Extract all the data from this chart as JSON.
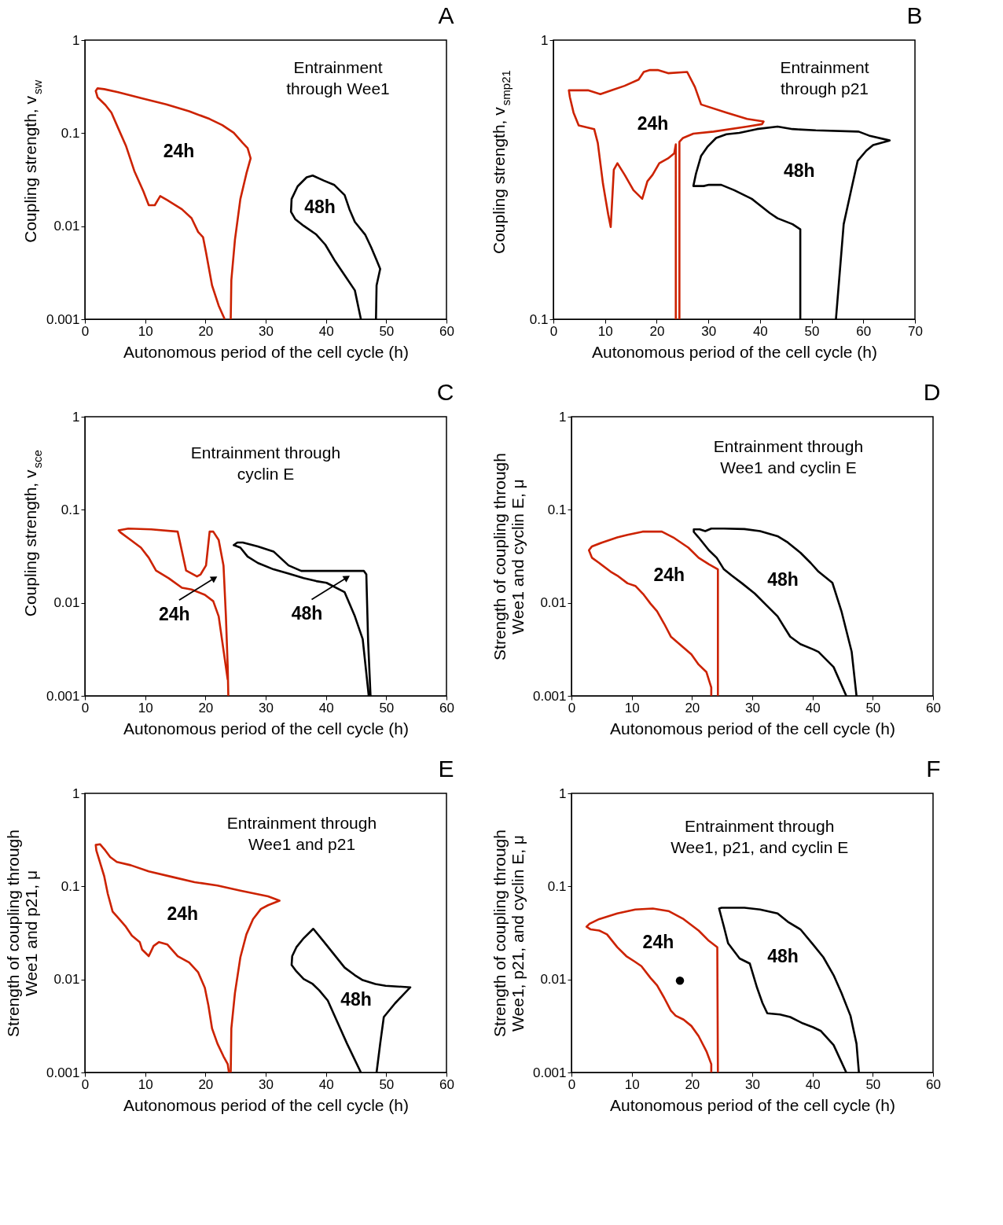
{
  "chart_data": [
    {
      "type": "line",
      "title": "A",
      "xlabel": "Autonomous period of the cell cycle (h)",
      "ylabel": "Coupling strength, v$_{sw}$",
      "log": "y",
      "xlim": [
        0,
        60
      ],
      "xticks": [
        0,
        10,
        20,
        30,
        40,
        50,
        60
      ],
      "ylim": [
        0.001,
        1
      ],
      "yticks": [
        0.001,
        0.01,
        0.1,
        1
      ],
      "annotations": [
        "Entrainment through Wee1",
        "24h",
        "48h"
      ],
      "series": [
        {
          "color": "#cc2200",
          "x": [
            23.2,
            22.2,
            21.1,
            20.1,
            19.6,
            18.8,
            17.7,
            16.1,
            13.7,
            12.5,
            11.6,
            10.6,
            9.7,
            8.2,
            6.8,
            5.5,
            4.4,
            3.4,
            2.1,
            1.8,
            2.1,
            3.2,
            5.5,
            9.7,
            13.5,
            17.3,
            20.7,
            22.8,
            24.7,
            26.2,
            27.0,
            27.5,
            26.8,
            25.8,
            24.9,
            24.3,
            24.2
          ],
          "values": [
            0.001,
            0.0014,
            0.00231,
            0.00523,
            0.00763,
            0.00865,
            0.0122,
            0.0152,
            0.019,
            0.0211,
            0.0168,
            0.0168,
            0.0237,
            0.0392,
            0.0735,
            0.114,
            0.166,
            0.201,
            0.243,
            0.284,
            0.303,
            0.297,
            0.275,
            0.235,
            0.204,
            0.172,
            0.142,
            0.122,
            0.101,
            0.0782,
            0.069,
            0.0537,
            0.0368,
            0.0196,
            0.00716,
            0.00262,
            0.001
          ]
        },
        {
          "color": "#000000",
          "x": [
            45.8,
            44.8,
            43.1,
            41.4,
            39.9,
            38.4,
            36.3,
            34.9,
            34.2,
            34.3,
            35.3,
            36.8,
            37.8,
            39.7,
            41.4,
            43.1,
            43.9,
            44.8,
            46.5,
            47.5,
            48.4,
            49.0,
            48.4,
            48.3
          ],
          "values": [
            0.001,
            0.00204,
            0.00297,
            0.00433,
            0.00632,
            0.00813,
            0.0101,
            0.0119,
            0.0143,
            0.0196,
            0.0268,
            0.0335,
            0.035,
            0.0308,
            0.0277,
            0.0216,
            0.0152,
            0.0111,
            0.00813,
            0.00593,
            0.00433,
            0.00348,
            0.00231,
            0.001
          ]
        }
      ]
    },
    {
      "type": "line",
      "title": "B",
      "xlabel": "Autonomous period of the cell cycle (h)",
      "ylabel": "Coupling strength, v$_{smp21}$",
      "log": "y",
      "xlim": [
        0,
        70
      ],
      "xticks": [
        0,
        10,
        20,
        30,
        40,
        50,
        60,
        70
      ],
      "ylim": [
        0.1,
        1
      ],
      "yticks": [
        0.1,
        1
      ],
      "annotations": [
        "Entrainment through p21",
        "24h",
        "48h"
      ],
      "series": [
        {
          "color": "#cc2200",
          "x": [
            23.7,
            23.7,
            23.4,
            22.2,
            20.5,
            19.2,
            18.2,
            17.2,
            15.5,
            13.8,
            12.4,
            11.7,
            11.1,
            10.6,
            9.6,
            8.6,
            7.9,
            4.9,
            3.9,
            3.2,
            3.0,
            6.7,
            9.1,
            11.3,
            13.8,
            16.5,
            17.5,
            18.7,
            20.2,
            22.2,
            25.9,
            27.4,
            28.6,
            33.5,
            37.5,
            40.7,
            40.4,
            37.5,
            31.0,
            27.1,
            25.1,
            24.4,
            24.4
          ],
          "values": [
            0.1,
            0.423,
            0.393,
            0.377,
            0.362,
            0.329,
            0.312,
            0.27,
            0.29,
            0.329,
            0.362,
            0.343,
            0.214,
            0.238,
            0.306,
            0.428,
            0.48,
            0.495,
            0.55,
            0.624,
            0.661,
            0.661,
            0.64,
            0.661,
            0.686,
            0.722,
            0.769,
            0.781,
            0.781,
            0.761,
            0.769,
            0.679,
            0.588,
            0.55,
            0.522,
            0.511,
            0.5,
            0.49,
            0.47,
            0.462,
            0.446,
            0.432,
            0.1
          ]
        },
        {
          "color": "#000000",
          "x": [
            47.8,
            47.8,
            46.3,
            43.4,
            41.9,
            38.4,
            35.0,
            32.5,
            30.1,
            29.1,
            27.1,
            27.6,
            28.6,
            29.8,
            31.5,
            33.5,
            36.0,
            39.4,
            43.4,
            46.3,
            50.8,
            59.1,
            61.1,
            65.1,
            61.9,
            60.6,
            58.9,
            57.7,
            56.2,
            54.7
          ],
          "values": [
            0.1,
            0.21,
            0.219,
            0.23,
            0.24,
            0.27,
            0.29,
            0.303,
            0.303,
            0.3,
            0.3,
            0.332,
            0.385,
            0.414,
            0.446,
            0.46,
            0.465,
            0.48,
            0.49,
            0.48,
            0.475,
            0.47,
            0.455,
            0.437,
            0.421,
            0.402,
            0.369,
            0.293,
            0.219,
            0.1
          ]
        }
      ]
    },
    {
      "type": "line",
      "title": "C",
      "xlabel": "Autonomous period of the cell cycle (h)",
      "ylabel": "Coupling strength, v$_{sce}$",
      "log": "y",
      "xlim": [
        0,
        60
      ],
      "xticks": [
        0,
        10,
        20,
        30,
        40,
        50,
        60
      ],
      "ylim": [
        0.001,
        1
      ],
      "yticks": [
        0.001,
        0.01,
        0.1,
        1
      ],
      "annotations": [
        "Entrainment through cyclin E",
        {
          "text": "24h",
          "x": 21.5,
          "y": 0.0184
        },
        {
          "text": "48h",
          "x": 43.5,
          "y": 0.0187
        }
      ],
      "series": [
        {
          "color": "#cc2200",
          "x": [
            23.7,
            22.8,
            22.2,
            21.3,
            19.9,
            17.7,
            16.1,
            13.9,
            11.8,
            10.6,
            9.3,
            7.6,
            5.9,
            5.6,
            7.2,
            11.0,
            15.4,
            16.8,
            18.6,
            19.2,
            20.1,
            20.7,
            21.3,
            22.2,
            23.0,
            23.4,
            23.7,
            23.8
          ],
          "values": [
            0.00149,
            0.00382,
            0.00716,
            0.0104,
            0.0122,
            0.0139,
            0.0145,
            0.0184,
            0.0222,
            0.0305,
            0.0392,
            0.0473,
            0.0571,
            0.0601,
            0.0628,
            0.0616,
            0.0582,
            0.0222,
            0.0192,
            0.0202,
            0.0252,
            0.0582,
            0.0582,
            0.0473,
            0.0252,
            0.00716,
            0.00204,
            0.001
          ]
        },
        {
          "color": "#000000",
          "x": [
            47.1,
            46.1,
            44.8,
            43.1,
            40.1,
            38.4,
            36.3,
            33.8,
            31.3,
            28.7,
            27.0,
            25.8,
            24.7,
            25.3,
            26.2,
            28.7,
            31.3,
            33.8,
            35.9,
            39.7,
            43.5,
            46.3,
            46.7,
            47.0,
            47.4
          ],
          "values": [
            0.001,
            0.00407,
            0.00716,
            0.013,
            0.0164,
            0.0171,
            0.0184,
            0.0206,
            0.0229,
            0.0268,
            0.0314,
            0.0392,
            0.0417,
            0.0445,
            0.0445,
            0.0404,
            0.0356,
            0.0252,
            0.022,
            0.022,
            0.022,
            0.022,
            0.0202,
            0.00382,
            0.001
          ]
        }
      ]
    },
    {
      "type": "line",
      "title": "D",
      "xlabel": "Autonomous period of the cell cycle (h)",
      "ylabel": "Strength of coupling through Wee1 and cyclin E, μ",
      "log": "y",
      "xlim": [
        0,
        60
      ],
      "xticks": [
        0,
        10,
        20,
        30,
        40,
        50,
        60
      ],
      "ylim": [
        0.001,
        1
      ],
      "yticks": [
        0.001,
        0.01,
        0.1,
        1
      ],
      "annotations": [
        "Entrainment through Wee1 and cyclin E",
        "24h",
        "48h"
      ],
      "series": [
        {
          "color": "#cc2200",
          "x": [
            23.2,
            23.2,
            22.4,
            21.1,
            19.9,
            18.2,
            16.5,
            15.4,
            14.2,
            13.1,
            12.0,
            10.6,
            9.3,
            7.6,
            6.5,
            4.6,
            3.4,
            2.9,
            3.4,
            5.1,
            7.6,
            9.3,
            11.8,
            15.0,
            16.9,
            19.4,
            21.1,
            22.8,
            24.3,
            24.3
          ],
          "values": [
            0.001,
            0.00123,
            0.0018,
            0.00217,
            0.00279,
            0.00348,
            0.00433,
            0.00593,
            0.00813,
            0.00982,
            0.0122,
            0.0152,
            0.0162,
            0.0196,
            0.0216,
            0.0268,
            0.0305,
            0.0368,
            0.0404,
            0.0445,
            0.0504,
            0.0537,
            0.0582,
            0.0582,
            0.0504,
            0.0392,
            0.0305,
            0.026,
            0.0229,
            0.001
          ]
        },
        {
          "color": "#000000",
          "x": [
            45.6,
            43.5,
            41.0,
            40.1,
            38.0,
            36.3,
            35.5,
            34.2,
            32.5,
            30.4,
            28.3,
            26.6,
            25.3,
            24.1,
            22.8,
            21.1,
            20.3,
            20.3,
            21.3,
            22.2,
            23.2,
            25.3,
            28.7,
            31.3,
            34.2,
            35.9,
            38.0,
            39.7,
            41.0,
            43.3,
            44.8,
            46.5,
            47.3
          ],
          "values": [
            0.001,
            0.00204,
            0.00297,
            0.00316,
            0.00359,
            0.00433,
            0.00523,
            0.00716,
            0.00921,
            0.0126,
            0.0162,
            0.0196,
            0.0229,
            0.0305,
            0.0368,
            0.0504,
            0.0578,
            0.0616,
            0.0616,
            0.0589,
            0.0628,
            0.0628,
            0.062,
            0.0589,
            0.052,
            0.0445,
            0.0345,
            0.0268,
            0.0216,
            0.0164,
            0.00813,
            0.00297,
            0.001
          ]
        }
      ]
    },
    {
      "type": "line",
      "title": "E",
      "xlabel": "Autonomous period of the cell cycle (h)",
      "ylabel": "Strength of coupling through Wee1 and p21, μ",
      "log": "y",
      "xlim": [
        0,
        60
      ],
      "xticks": [
        0,
        10,
        20,
        30,
        40,
        50,
        60
      ],
      "ylim": [
        0.001,
        1
      ],
      "yticks": [
        0.001,
        0.01,
        0.1,
        1
      ],
      "annotations": [
        "Entrainment through Wee1 and p21",
        "24h",
        "48h"
      ],
      "series": [
        {
          "color": "#cc2200",
          "x": [
            23.9,
            23.7,
            23.0,
            22.0,
            21.1,
            20.5,
            19.9,
            18.8,
            17.3,
            15.4,
            13.7,
            12.3,
            11.4,
            10.6,
            9.5,
            9.1,
            7.8,
            6.8,
            5.7,
            4.6,
            3.8,
            3.2,
            1.9,
            1.8,
            2.5,
            3.4,
            4.2,
            5.3,
            7.6,
            10.6,
            14.8,
            18.2,
            22.0,
            25.8,
            30.4,
            32.3,
            30.4,
            29.2,
            27.9,
            26.8,
            25.8,
            24.9,
            24.3,
            24.2
          ],
          "values": [
            0.001,
            0.00123,
            0.00149,
            0.00204,
            0.00297,
            0.00523,
            0.00813,
            0.0119,
            0.0152,
            0.0178,
            0.0237,
            0.0252,
            0.0229,
            0.0178,
            0.0209,
            0.0252,
            0.0295,
            0.0368,
            0.0445,
            0.0537,
            0.0833,
            0.129,
            0.243,
            0.279,
            0.284,
            0.243,
            0.207,
            0.183,
            0.169,
            0.145,
            0.125,
            0.111,
            0.102,
            0.0899,
            0.0782,
            0.0703,
            0.0628,
            0.0571,
            0.0445,
            0.0305,
            0.0173,
            0.00716,
            0.00297,
            0.001
          ]
        },
        {
          "color": "#000000",
          "x": [
            45.8,
            43.5,
            41.8,
            40.3,
            38.9,
            37.8,
            36.3,
            35.1,
            34.3,
            34.4,
            35.1,
            36.3,
            37.9,
            39.7,
            41.4,
            43.1,
            44.8,
            46.1,
            48.2,
            49.9,
            54.0,
            51.5,
            49.6,
            49.0,
            48.4
          ],
          "values": [
            0.001,
            0.00204,
            0.00359,
            0.00593,
            0.00763,
            0.00893,
            0.0101,
            0.0122,
            0.0143,
            0.0178,
            0.0222,
            0.0277,
            0.035,
            0.0252,
            0.0184,
            0.0134,
            0.0111,
            0.00982,
            0.00893,
            0.00855,
            0.00823,
            0.00557,
            0.00394,
            0.00204,
            0.001
          ]
        }
      ]
    },
    {
      "type": "line",
      "title": "F",
      "xlabel": "Autonomous period of the cell cycle (h)",
      "ylabel": "Strength of coupling through Wee1, p21, and cyclin E, μ",
      "log": "y",
      "xlim": [
        0,
        60
      ],
      "xticks": [
        0,
        10,
        20,
        30,
        40,
        50,
        60
      ],
      "ylim": [
        0.001,
        1
      ],
      "yticks": [
        0.001,
        0.01,
        0.1,
        1
      ],
      "annotations": [
        "Entrainment through Wee1, p21, and cyclin E",
        "24h",
        "48h"
      ],
      "series": [
        {
          "color": "#cc2200",
          "x": [
            23.2,
            23.2,
            22.4,
            21.1,
            19.9,
            18.6,
            17.3,
            16.5,
            15.4,
            14.2,
            13.1,
            11.6,
            10.4,
            9.1,
            7.6,
            5.9,
            4.6,
            3.2,
            2.5,
            3.0,
            4.6,
            7.6,
            10.6,
            13.5,
            16.1,
            18.6,
            21.1,
            22.8,
            24.2,
            24.3
          ],
          "values": [
            0.001,
            0.00123,
            0.00169,
            0.00246,
            0.00316,
            0.0037,
            0.00407,
            0.00461,
            0.00632,
            0.00865,
            0.0104,
            0.0139,
            0.0157,
            0.0178,
            0.0222,
            0.0305,
            0.0335,
            0.0345,
            0.0368,
            0.0397,
            0.0445,
            0.0511,
            0.0564,
            0.0578,
            0.0543,
            0.0445,
            0.0335,
            0.026,
            0.0222,
            0.001
          ]
        },
        {
          "color": "#000000",
          "x": [
            45.6,
            43.5,
            41.4,
            40.1,
            38.4,
            36.3,
            34.6,
            32.5,
            31.7,
            30.8,
            29.6,
            27.9,
            26.0,
            25.3,
            24.5,
            24.9,
            28.7,
            31.3,
            34.2,
            35.9,
            38.0,
            40.1,
            41.8,
            43.5,
            44.8,
            46.3,
            47.3,
            47.7
          ],
          "values": [
            0.001,
            0.00197,
            0.00279,
            0.00306,
            0.00337,
            0.00394,
            0.0042,
            0.00433,
            0.00557,
            0.00813,
            0.0148,
            0.0168,
            0.0244,
            0.0368,
            0.0578,
            0.0589,
            0.0589,
            0.0564,
            0.0511,
            0.0417,
            0.0345,
            0.0237,
            0.0173,
            0.0111,
            0.00716,
            0.00407,
            0.00204,
            0.001
          ]
        },
        {
          "type": "scatter",
          "color": "#000000",
          "marker": "circle",
          "x": [
            18.0
          ],
          "values": [
            0.00969
          ]
        }
      ]
    }
  ]
}
